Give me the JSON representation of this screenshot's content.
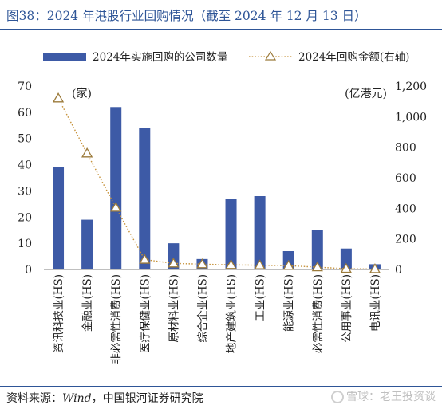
{
  "title": "图38：2024 年港股行业回购情况（截至 2024 年 12 月 13 日）",
  "source": {
    "prefix": "资料来源：",
    "english": "Wind",
    "suffix": "，中国银河证券研究院"
  },
  "watermark": "雪球：老王投资谈",
  "chart_data": {
    "type": "bar+line",
    "categories": [
      "资讯科技业(HS)",
      "金融业(HS)",
      "非必需性消费(HS)",
      "医疗保健业(HS)",
      "原材料业(HS)",
      "综合企业(HS)",
      "地产建筑业(HS)",
      "工业(HS)",
      "能源业(HS)",
      "必需性消费(HS)",
      "公用事业(HS)",
      "电讯业(HS)"
    ],
    "series": [
      {
        "name": "2024年实施回购的公司数量",
        "type": "bar",
        "axis": "left",
        "color": "#3d5aa6",
        "values": [
          39,
          19,
          62,
          54,
          10,
          4,
          27,
          28,
          7,
          15,
          8,
          2
        ]
      },
      {
        "name": "2024年回购金额(右轴)",
        "type": "line",
        "axis": "right",
        "color": "#c6923a",
        "values": [
          1120,
          760,
          405,
          65,
          40,
          35,
          30,
          28,
          25,
          15,
          5,
          3
        ]
      }
    ],
    "left_axis": {
      "unit": "(家)",
      "ylim": [
        0,
        70
      ],
      "ticks": [
        "0",
        "10",
        "20",
        "30",
        "40",
        "50",
        "60",
        "70"
      ]
    },
    "right_axis": {
      "unit": "(亿港元)",
      "ylim": [
        0,
        1200
      ],
      "ticks": [
        "0",
        "200",
        "400",
        "600",
        "800",
        "1,000",
        "1,200"
      ]
    },
    "legend_placement": "top"
  }
}
